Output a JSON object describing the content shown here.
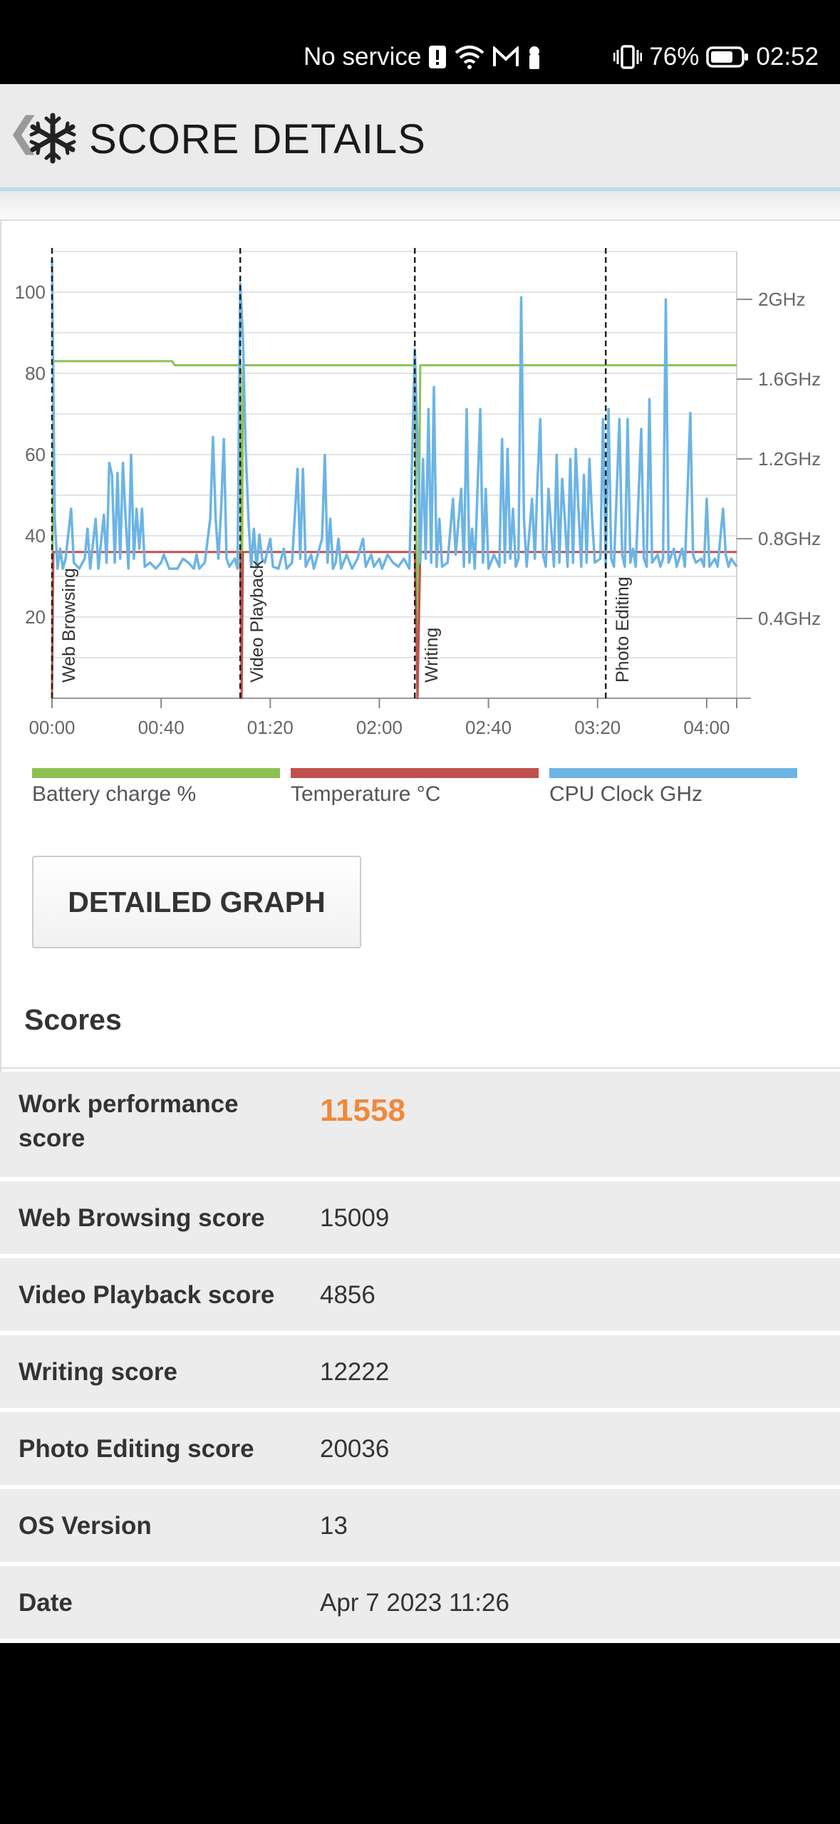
{
  "status_bar": {
    "network": "No service",
    "battery_percent": "76%",
    "time": "02:52"
  },
  "header": {
    "back_glyph": "❮",
    "title": "SCORE DETAILS"
  },
  "chart_data": {
    "type": "line",
    "x_ticks": [
      "00:00",
      "00:40",
      "01:20",
      "02:00",
      "02:40",
      "03:20",
      "04:00"
    ],
    "y_ticks_left": [
      "100",
      "80",
      "60",
      "40",
      "20"
    ],
    "y_ticks_right": [
      "2GHz",
      "1.6GHz",
      "1.2GHz",
      "0.8GHz",
      "0.4GHz"
    ],
    "ylim_left": [
      0,
      110
    ],
    "ylim_right": [
      0,
      2.24
    ],
    "xlim_minutes": [
      0,
      251
    ],
    "grid": true,
    "legend_position": "bottom",
    "sections": [
      {
        "label": "Web Browsing",
        "start_min": 0
      },
      {
        "label": "Video Playback",
        "start_min": 69
      },
      {
        "label": "Writing",
        "start_min": 133
      },
      {
        "label": "Photo Editing",
        "start_min": 203
      }
    ],
    "series": [
      {
        "name": "Battery charge %",
        "color": "#8cc152",
        "points": [
          [
            0,
            0
          ],
          [
            0.5,
            83
          ],
          [
            44,
            83
          ],
          [
            45,
            82
          ],
          [
            69,
            82
          ],
          [
            69.5,
            0
          ],
          [
            70,
            82
          ],
          [
            133,
            82
          ],
          [
            134,
            0
          ],
          [
            135,
            82
          ],
          [
            251,
            82
          ]
        ]
      },
      {
        "name": "Temperature °C",
        "color": "#c0504d",
        "points": [
          [
            0,
            0
          ],
          [
            0.5,
            36
          ],
          [
            69,
            36
          ],
          [
            69.5,
            0
          ],
          [
            70,
            36
          ],
          [
            133,
            36
          ],
          [
            134,
            0
          ],
          [
            135,
            36
          ],
          [
            251,
            36
          ]
        ]
      },
      {
        "name": "CPU Clock GHz",
        "color": "#6cb4e4",
        "points": [
          [
            0,
            2.2
          ],
          [
            1,
            0.9
          ],
          [
            2,
            0.65
          ],
          [
            3,
            0.75
          ],
          [
            4,
            0.65
          ],
          [
            5,
            0.7
          ],
          [
            7,
            0.95
          ],
          [
            8,
            0.68
          ],
          [
            10,
            0.65
          ],
          [
            12,
            0.7
          ],
          [
            13,
            0.85
          ],
          [
            14,
            0.65
          ],
          [
            16,
            0.9
          ],
          [
            17,
            0.65
          ],
          [
            19,
            0.92
          ],
          [
            20,
            0.68
          ],
          [
            21,
            1.18
          ],
          [
            22,
            1.12
          ],
          [
            23,
            0.68
          ],
          [
            24,
            1.13
          ],
          [
            25,
            0.7
          ],
          [
            26,
            1.18
          ],
          [
            27,
            0.9
          ],
          [
            28,
            0.65
          ],
          [
            29,
            1.22
          ],
          [
            30,
            0.7
          ],
          [
            31,
            0.95
          ],
          [
            32,
            0.75
          ],
          [
            33,
            0.95
          ],
          [
            34,
            0.66
          ],
          [
            36,
            0.68
          ],
          [
            38,
            0.65
          ],
          [
            40,
            0.68
          ],
          [
            41,
            0.72
          ],
          [
            43,
            0.65
          ],
          [
            46,
            0.65
          ],
          [
            48,
            0.7
          ],
          [
            50,
            0.68
          ],
          [
            52,
            0.65
          ],
          [
            53,
            0.72
          ],
          [
            54,
            0.65
          ],
          [
            56,
            0.68
          ],
          [
            58,
            0.9
          ],
          [
            59,
            1.31
          ],
          [
            60,
            0.9
          ],
          [
            61,
            0.7
          ],
          [
            62,
            0.95
          ],
          [
            63,
            1.3
          ],
          [
            64,
            0.7
          ],
          [
            65,
            0.66
          ],
          [
            66,
            0.68
          ],
          [
            67,
            0.7
          ],
          [
            68,
            0.65
          ],
          [
            69,
            2.08
          ],
          [
            70,
            1.8
          ],
          [
            71,
            1.25
          ],
          [
            72,
            0.9
          ],
          [
            73,
            0.66
          ],
          [
            74,
            0.85
          ],
          [
            75,
            0.65
          ],
          [
            76,
            0.82
          ],
          [
            77,
            0.7
          ],
          [
            78,
            0.68
          ],
          [
            80,
            0.8
          ],
          [
            81,
            0.66
          ],
          [
            83,
            0.65
          ],
          [
            85,
            0.75
          ],
          [
            86,
            0.65
          ],
          [
            88,
            0.68
          ],
          [
            90,
            1.15
          ],
          [
            91,
            0.7
          ],
          [
            92,
            1.15
          ],
          [
            93,
            0.66
          ],
          [
            95,
            0.72
          ],
          [
            96,
            0.65
          ],
          [
            97,
            0.7
          ],
          [
            99,
            0.8
          ],
          [
            100,
            1.22
          ],
          [
            101,
            0.68
          ],
          [
            102,
            0.9
          ],
          [
            103,
            0.65
          ],
          [
            104,
            0.68
          ],
          [
            105,
            0.8
          ],
          [
            106,
            0.65
          ],
          [
            108,
            0.72
          ],
          [
            110,
            0.65
          ],
          [
            112,
            0.7
          ],
          [
            114,
            0.8
          ],
          [
            115,
            0.66
          ],
          [
            117,
            0.72
          ],
          [
            118,
            0.66
          ],
          [
            120,
            0.7
          ],
          [
            121,
            0.65
          ],
          [
            123,
            0.72
          ],
          [
            125,
            0.68
          ],
          [
            127,
            0.66
          ],
          [
            129,
            0.7
          ],
          [
            131,
            0.65
          ],
          [
            133,
            1.75
          ],
          [
            134,
            1.3
          ],
          [
            135,
            0.68
          ],
          [
            136,
            1.2
          ],
          [
            137,
            0.7
          ],
          [
            138,
            1.45
          ],
          [
            139,
            0.68
          ],
          [
            140,
            1.56
          ],
          [
            141,
            0.66
          ],
          [
            142,
            0.9
          ],
          [
            143,
            0.66
          ],
          [
            145,
            0.68
          ],
          [
            147,
            1.0
          ],
          [
            148,
            0.72
          ],
          [
            150,
            1.05
          ],
          [
            151,
            0.66
          ],
          [
            152,
            1.45
          ],
          [
            153,
            0.68
          ],
          [
            154,
            0.85
          ],
          [
            155,
            0.65
          ],
          [
            157,
            1.45
          ],
          [
            158,
            0.68
          ],
          [
            159,
            1.05
          ],
          [
            160,
            0.65
          ],
          [
            162,
            0.72
          ],
          [
            164,
            0.66
          ],
          [
            165,
            1.3
          ],
          [
            166,
            0.68
          ],
          [
            167,
            1.25
          ],
          [
            168,
            0.7
          ],
          [
            169,
            0.95
          ],
          [
            170,
            0.66
          ],
          [
            171,
            0.7
          ],
          [
            172,
            2.01
          ],
          [
            173,
            0.9
          ],
          [
            174,
            0.66
          ],
          [
            176,
            1.0
          ],
          [
            177,
            0.7
          ],
          [
            178,
            1.1
          ],
          [
            179,
            1.4
          ],
          [
            180,
            0.72
          ],
          [
            181,
            0.66
          ],
          [
            182,
            1.05
          ],
          [
            183,
            0.85
          ],
          [
            184,
            0.66
          ],
          [
            185,
            1.22
          ],
          [
            186,
            0.68
          ],
          [
            187,
            1.1
          ],
          [
            188,
            0.9
          ],
          [
            189,
            0.66
          ],
          [
            190,
            1.2
          ],
          [
            191,
            0.68
          ],
          [
            192,
            1.25
          ],
          [
            193,
            0.95
          ],
          [
            194,
            0.66
          ],
          [
            195,
            1.12
          ],
          [
            196,
            0.68
          ],
          [
            197,
            1.2
          ],
          [
            198,
            0.9
          ],
          [
            199,
            0.68
          ],
          [
            201,
            0.7
          ],
          [
            202,
            1.4
          ],
          [
            203,
            0.66
          ],
          [
            204,
            1.45
          ],
          [
            205,
            0.7
          ],
          [
            206,
            0.66
          ],
          [
            208,
            1.4
          ],
          [
            209,
            0.72
          ],
          [
            210,
            0.66
          ],
          [
            211,
            1.4
          ],
          [
            212,
            0.68
          ],
          [
            213,
            0.75
          ],
          [
            214,
            0.66
          ],
          [
            216,
            1.35
          ],
          [
            217,
            0.7
          ],
          [
            218,
            0.66
          ],
          [
            219,
            1.5
          ],
          [
            220,
            0.68
          ],
          [
            222,
            0.72
          ],
          [
            223,
            0.66
          ],
          [
            224,
            0.7
          ],
          [
            225,
            2.0
          ],
          [
            226,
            0.68
          ],
          [
            228,
            0.75
          ],
          [
            229,
            0.66
          ],
          [
            231,
            0.75
          ],
          [
            232,
            0.66
          ],
          [
            234,
            1.43
          ],
          [
            235,
            0.72
          ],
          [
            236,
            0.68
          ],
          [
            238,
            0.7
          ],
          [
            239,
            0.66
          ],
          [
            240,
            1.0
          ],
          [
            241,
            0.66
          ],
          [
            243,
            0.7
          ],
          [
            244,
            0.66
          ],
          [
            246,
            0.95
          ],
          [
            247,
            0.72
          ],
          [
            248,
            0.66
          ],
          [
            249,
            0.7
          ],
          [
            251,
            0.66
          ]
        ]
      }
    ]
  },
  "legend": {
    "battery": "Battery charge %",
    "temperature": "Temperature °C",
    "cpu": "CPU Clock GHz"
  },
  "detailed_graph_label": "DETAILED GRAPH",
  "scores_heading": "Scores",
  "scores": [
    {
      "label": "Work performance\nscore",
      "value": "11558"
    },
    {
      "label": "Web Browsing score",
      "value": "15009"
    },
    {
      "label": "Video Playback score",
      "value": "4856"
    },
    {
      "label": "Writing score",
      "value": "12222"
    },
    {
      "label": "Photo Editing score",
      "value": "20036"
    },
    {
      "label": "OS Version",
      "value": "13"
    },
    {
      "label": "Date",
      "value": "Apr 7 2023 11:26"
    }
  ]
}
